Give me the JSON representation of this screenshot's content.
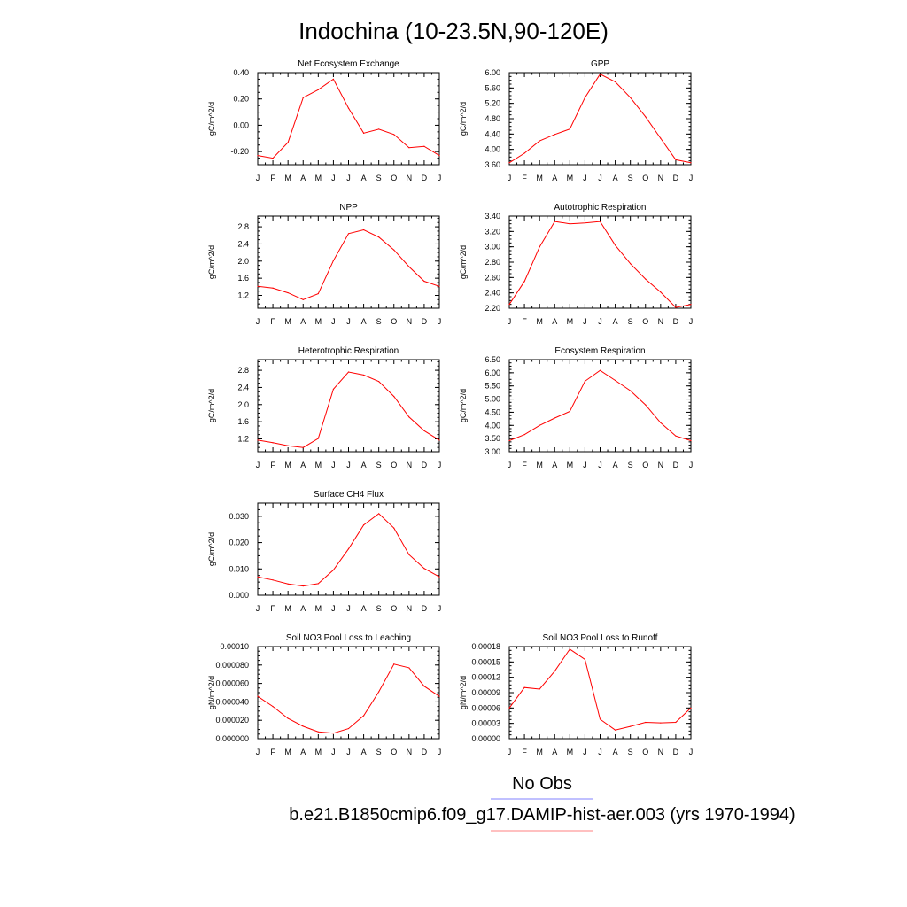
{
  "figure": {
    "title": "Indochina (10-23.5N,90-120E)",
    "line_color": "#ff0000",
    "obs_line_color": "#8080ff"
  },
  "legend": {
    "entries": [
      {
        "label": "No Obs",
        "color": "#8080ff"
      },
      {
        "label": "b.e21.B1850cmip6.f09_g17.DAMIP-hist-aer.003 (yrs 1970-1994)",
        "color": "#ff8080"
      }
    ]
  },
  "chart_data": [
    {
      "type": "line",
      "title": "Net Ecosystem Exchange",
      "ylabel": "gC/m^2/d",
      "categories": [
        "J",
        "F",
        "M",
        "A",
        "M",
        "J",
        "J",
        "A",
        "S",
        "O",
        "N",
        "D",
        "J"
      ],
      "ylim": [
        -0.3,
        0.4
      ],
      "yticks": [
        -0.2,
        0.0,
        0.2,
        0.4
      ],
      "yticklabels": [
        "-0.20",
        "0.00",
        "0.20",
        "0.40"
      ],
      "values": [
        -0.23,
        -0.25,
        -0.13,
        0.21,
        0.27,
        0.35,
        0.13,
        -0.06,
        -0.03,
        -0.07,
        -0.17,
        -0.16,
        -0.23
      ]
    },
    {
      "type": "line",
      "title": "GPP",
      "ylabel": "gC/m^2/d",
      "categories": [
        "J",
        "F",
        "M",
        "A",
        "M",
        "J",
        "J",
        "A",
        "S",
        "O",
        "N",
        "D",
        "J"
      ],
      "ylim": [
        3.6,
        6.0
      ],
      "yticks": [
        3.6,
        4.0,
        4.4,
        4.8,
        5.2,
        5.6,
        6.0
      ],
      "yticklabels": [
        "3.60",
        "4.00",
        "4.40",
        "4.80",
        "5.20",
        "5.60",
        "6.00"
      ],
      "values": [
        3.65,
        3.9,
        4.22,
        4.39,
        4.53,
        5.35,
        5.96,
        5.76,
        5.35,
        4.85,
        4.29,
        3.73,
        3.65
      ]
    },
    {
      "type": "line",
      "title": "NPP",
      "ylabel": "gC/m^2/d",
      "categories": [
        "J",
        "F",
        "M",
        "A",
        "M",
        "J",
        "J",
        "A",
        "S",
        "O",
        "N",
        "D",
        "J"
      ],
      "ylim": [
        0.9,
        3.05
      ],
      "yticks": [
        1.2,
        1.6,
        2.0,
        2.4,
        2.8
      ],
      "yticklabels": [
        "1.2",
        "1.6",
        "2.0",
        "2.4",
        "2.8"
      ],
      "values": [
        1.41,
        1.37,
        1.26,
        1.1,
        1.24,
        2.01,
        2.64,
        2.73,
        2.56,
        2.26,
        1.87,
        1.53,
        1.41
      ]
    },
    {
      "type": "line",
      "title": "Autotrophic Respiration",
      "ylabel": "gC/m^2/d",
      "categories": [
        "J",
        "F",
        "M",
        "A",
        "M",
        "J",
        "J",
        "A",
        "S",
        "O",
        "N",
        "D",
        "J"
      ],
      "ylim": [
        2.2,
        3.4
      ],
      "yticks": [
        2.2,
        2.4,
        2.6,
        2.8,
        3.0,
        3.2,
        3.4
      ],
      "yticklabels": [
        "2.20",
        "2.40",
        "2.60",
        "2.80",
        "3.00",
        "3.20",
        "3.40"
      ],
      "values": [
        2.25,
        2.55,
        3.0,
        3.33,
        3.3,
        3.31,
        3.33,
        3.02,
        2.78,
        2.58,
        2.41,
        2.21,
        2.25
      ]
    },
    {
      "type": "line",
      "title": "Heterotrophic Respiration",
      "ylabel": "gC/m^2/d",
      "categories": [
        "J",
        "F",
        "M",
        "A",
        "M",
        "J",
        "J",
        "A",
        "S",
        "O",
        "N",
        "D",
        "J"
      ],
      "ylim": [
        0.9,
        3.05
      ],
      "yticks": [
        1.2,
        1.6,
        2.0,
        2.4,
        2.8
      ],
      "yticklabels": [
        "1.2",
        "1.6",
        "2.0",
        "2.4",
        "2.8"
      ],
      "values": [
        1.17,
        1.11,
        1.04,
        1.0,
        1.21,
        2.36,
        2.76,
        2.69,
        2.54,
        2.19,
        1.71,
        1.39,
        1.17
      ]
    },
    {
      "type": "line",
      "title": "Ecosystem Respiration",
      "ylabel": "gC/m^2/d",
      "categories": [
        "J",
        "F",
        "M",
        "A",
        "M",
        "J",
        "J",
        "A",
        "S",
        "O",
        "N",
        "D",
        "J"
      ],
      "ylim": [
        3.0,
        6.5
      ],
      "yticks": [
        3.0,
        3.5,
        4.0,
        4.5,
        5.0,
        5.5,
        6.0,
        6.5
      ],
      "yticklabels": [
        "3.00",
        "3.50",
        "4.00",
        "4.50",
        "5.00",
        "5.50",
        "6.00",
        "6.50"
      ],
      "values": [
        3.42,
        3.65,
        4.0,
        4.28,
        4.53,
        5.68,
        6.09,
        5.71,
        5.32,
        4.78,
        4.1,
        3.6,
        3.42
      ]
    },
    {
      "type": "line",
      "title": "Surface CH4 Flux",
      "ylabel": "gC/m^2/d",
      "categories": [
        "J",
        "F",
        "M",
        "A",
        "M",
        "J",
        "J",
        "A",
        "S",
        "O",
        "N",
        "D",
        "J"
      ],
      "ylim": [
        0.0,
        0.035
      ],
      "yticks": [
        0.0,
        0.01,
        0.02,
        0.03
      ],
      "yticklabels": [
        "0.000",
        "0.010",
        "0.020",
        "0.030"
      ],
      "values": [
        0.007,
        0.0058,
        0.0043,
        0.0035,
        0.0044,
        0.0096,
        0.0176,
        0.0267,
        0.031,
        0.0255,
        0.0154,
        0.0102,
        0.007
      ]
    },
    {
      "type": "line",
      "title": "Soil NO3 Pool Loss to Leaching",
      "ylabel": "gN/m^2/d",
      "categories": [
        "J",
        "F",
        "M",
        "A",
        "M",
        "J",
        "J",
        "A",
        "S",
        "O",
        "N",
        "D",
        "J"
      ],
      "ylim": [
        0.0,
        0.0001
      ],
      "yticks": [
        0.0,
        2e-05,
        4e-05,
        6e-05,
        8e-05,
        0.0001
      ],
      "yticklabels": [
        "0.000000",
        "0.000020",
        "0.000040",
        "0.000060",
        "0.000080",
        "0.00010"
      ],
      "values": [
        4.6e-05,
        3.5e-05,
        2.2e-05,
        1.35e-05,
        7.5e-06,
        6e-06,
        1.1e-05,
        2.5e-05,
        5.1e-05,
        8.1e-05,
        7.7e-05,
        5.7e-05,
        4.6e-05
      ]
    },
    {
      "type": "line",
      "title": "Soil NO3 Pool Loss to Runoff",
      "ylabel": "gN/m^2/d",
      "categories": [
        "J",
        "F",
        "M",
        "A",
        "M",
        "J",
        "J",
        "A",
        "S",
        "O",
        "N",
        "D",
        "J"
      ],
      "ylim": [
        0.0,
        0.00018
      ],
      "yticks": [
        0.0,
        3e-05,
        6e-05,
        9e-05,
        0.00012,
        0.00015,
        0.00018
      ],
      "yticklabels": [
        "0.00000",
        "0.00003",
        "0.00006",
        "0.00009",
        "0.00012",
        "0.00015",
        "0.00018"
      ],
      "values": [
        6e-05,
        0.0001,
        9.7e-05,
        0.000132,
        0.000175,
        0.000155,
        3.8e-05,
        1.7e-05,
        2.4e-05,
        3.2e-05,
        3.1e-05,
        3.2e-05,
        6e-05
      ]
    }
  ]
}
